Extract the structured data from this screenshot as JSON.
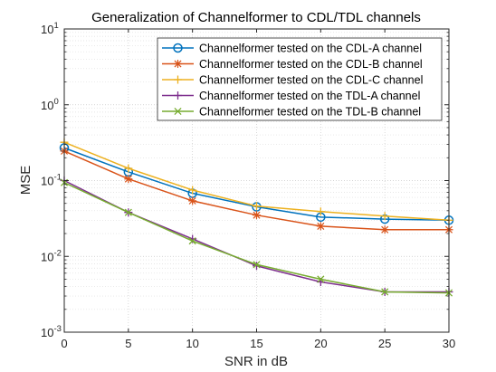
{
  "chart_data": {
    "type": "line",
    "title": "Generalization of Channelformer to CDL/TDL channels",
    "xlabel": "SNR in dB",
    "ylabel": "MSE",
    "x": [
      0,
      5,
      10,
      15,
      20,
      25,
      30
    ],
    "xlim": [
      0,
      30
    ],
    "ylim": [
      0.001,
      10
    ],
    "yscale": "log",
    "x_ticks": [
      "0",
      "5",
      "10",
      "15",
      "20",
      "25",
      "30"
    ],
    "y_ticks": [
      {
        "value": 0.001,
        "base": "10",
        "exp": "-3"
      },
      {
        "value": 0.01,
        "base": "10",
        "exp": "-2"
      },
      {
        "value": 0.1,
        "base": "10",
        "exp": "-1"
      },
      {
        "value": 1,
        "base": "10",
        "exp": "0"
      },
      {
        "value": 10,
        "base": "10",
        "exp": "1"
      }
    ],
    "grid": true,
    "legend_position": "top-right",
    "series": [
      {
        "name": "Channelformer tested on the CDL-A channel",
        "color": "#0072bd",
        "marker": "circle",
        "values": [
          0.27,
          0.13,
          0.068,
          0.045,
          0.033,
          0.031,
          0.03
        ]
      },
      {
        "name": "Channelformer tested on the CDL-B channel",
        "color": "#d95319",
        "marker": "asterisk",
        "values": [
          0.245,
          0.105,
          0.054,
          0.035,
          0.025,
          0.0225,
          0.0225
        ]
      },
      {
        "name": "Channelformer tested on the CDL-C channel",
        "color": "#edb120",
        "marker": "plus",
        "values": [
          0.32,
          0.145,
          0.075,
          0.046,
          0.039,
          0.034,
          0.03
        ]
      },
      {
        "name": "Channelformer tested on the TDL-A channel",
        "color": "#7e2f8e",
        "marker": "plus",
        "values": [
          0.1,
          0.038,
          0.017,
          0.0075,
          0.0046,
          0.0034,
          0.0034
        ]
      },
      {
        "name": "Channelformer tested on the TDL-B channel",
        "color": "#77ac30",
        "marker": "x",
        "values": [
          0.094,
          0.038,
          0.016,
          0.0078,
          0.005,
          0.0034,
          0.0033
        ]
      }
    ]
  }
}
